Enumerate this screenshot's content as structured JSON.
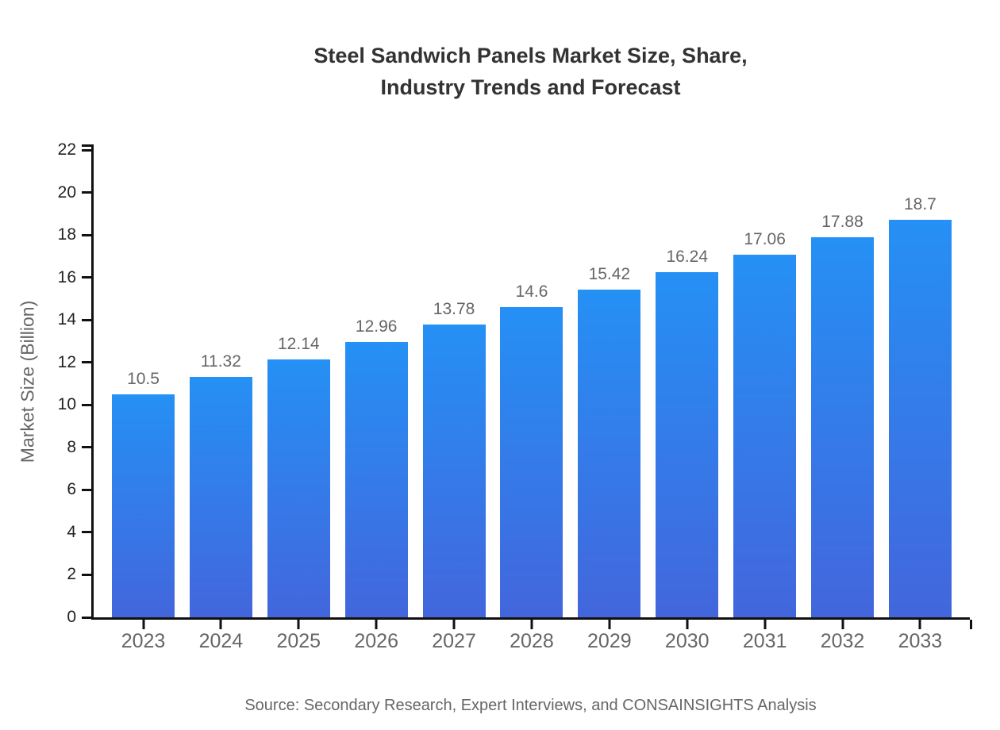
{
  "title": {
    "line1": "Steel Sandwich Panels Market Size, Share,",
    "line2": "Industry Trends and Forecast"
  },
  "source_note": "Source: Secondary Research, Expert Interviews, and CONSAINSIGHTS Analysis",
  "chart_data": {
    "type": "bar",
    "title": "Steel Sandwich Panels Market Size, Share, Industry Trends and Forecast",
    "categories": [
      "2023",
      "2024",
      "2025",
      "2026",
      "2027",
      "2028",
      "2029",
      "2030",
      "2031",
      "2032",
      "2033"
    ],
    "values": [
      10.5,
      11.32,
      12.14,
      12.96,
      13.78,
      14.6,
      15.42,
      16.24,
      17.06,
      17.88,
      18.7
    ],
    "value_labels": [
      "10.5",
      "11.32",
      "12.14",
      "12.96",
      "13.78",
      "14.6",
      "15.42",
      "16.24",
      "17.06",
      "17.88",
      "18.7"
    ],
    "xlabel": "",
    "ylabel": "Market Size (Billion)",
    "ylim": [
      0,
      22
    ],
    "yticks": [
      0,
      2,
      4,
      6,
      8,
      10,
      12,
      14,
      16,
      18,
      20,
      22
    ],
    "grid": false,
    "legend": "none",
    "colors": {
      "bar_gradient_top": "#2590f5",
      "bar_gradient_bottom": "#4366dc",
      "axis": "#111111",
      "y_tick_label": "#222222",
      "category_label": "#666666",
      "value_label": "#666666",
      "title": "#333333",
      "source": "#666666"
    }
  }
}
